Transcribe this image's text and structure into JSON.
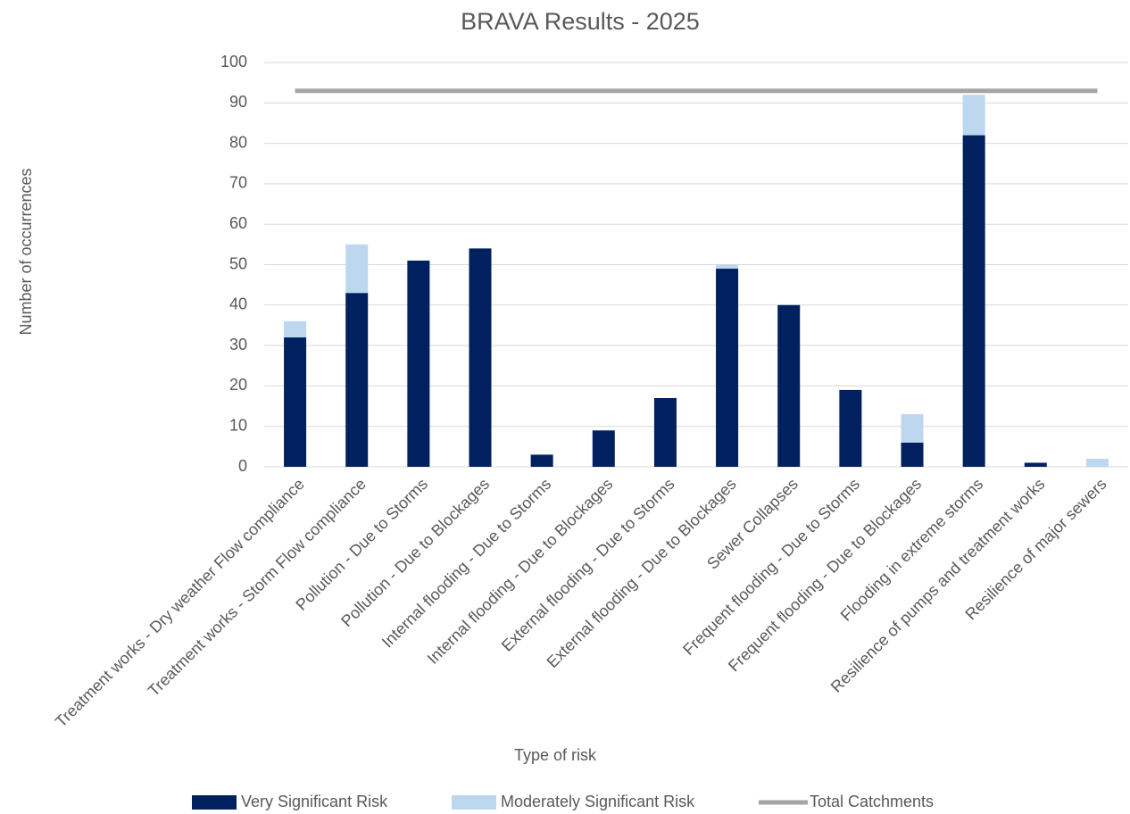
{
  "chart_data": {
    "type": "bar",
    "stacked": true,
    "title": "BRAVA Results - 2025",
    "x_label": "Type of risk",
    "y_label": "Number  of occurrences",
    "categories": [
      "Treatment works - Dry weather Flow compliance",
      "Treatment works - Storm Flow compliance",
      "Pollution - Due to Storms",
      "Pollution - Due to Blockages",
      "Internal flooding - Due to Storms",
      "Internal flooding - Due to Blockages",
      "External flooding - Due to Storms",
      "External flooding - Due to Blockages",
      "Sewer Collapses",
      "Frequent flooding - Due to Storms",
      "Frequent flooding - Due to Blockages",
      "Flooding in extreme storms",
      "Resilience of pumps and treatment works",
      "Resilience of major sewers"
    ],
    "series": [
      {
        "name": "Very Significant Risk",
        "color": "#002060",
        "type": "bar",
        "values": [
          32,
          43,
          51,
          54,
          3,
          9,
          17,
          49,
          40,
          19,
          6,
          82,
          1,
          0
        ]
      },
      {
        "name": "Moderately Significant Risk",
        "color": "#bdd7ee",
        "type": "bar",
        "values": [
          4,
          12,
          0,
          0,
          0,
          0,
          0,
          1,
          0,
          0,
          7,
          10,
          0,
          2
        ]
      },
      {
        "name": "Total Catchments",
        "color": "#a5a5a5",
        "type": "line",
        "values": [
          93,
          93,
          93,
          93,
          93,
          93,
          93,
          93,
          93,
          93,
          93,
          93,
          93,
          93
        ]
      }
    ],
    "ylim": [
      0,
      100
    ],
    "yticks": [
      0,
      10,
      20,
      30,
      40,
      50,
      60,
      70,
      80,
      90,
      100
    ],
    "grid": true,
    "legend": "bottom"
  }
}
